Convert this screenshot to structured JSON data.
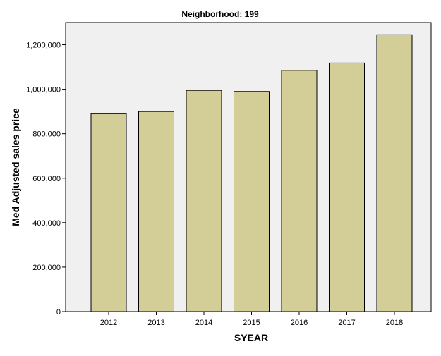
{
  "chart_data": {
    "type": "bar",
    "title": "Neighborhood: 199",
    "xlabel": "SYEAR",
    "ylabel": "Med Adjusted sales price",
    "categories": [
      "2012",
      "2013",
      "2014",
      "2015",
      "2016",
      "2017",
      "2018"
    ],
    "values": [
      890000,
      900000,
      995000,
      990000,
      1085000,
      1118000,
      1245000
    ],
    "ylim": [
      0,
      1300000
    ],
    "yticks": [
      0,
      200000,
      400000,
      600000,
      800000,
      1000000,
      1200000
    ],
    "ytick_labels": [
      "0",
      "200,000",
      "400,000",
      "600,000",
      "800,000",
      "1,000,000",
      "1,200,000"
    ],
    "grid": false,
    "legend": "none",
    "colors": {
      "bar_fill": "#d3ce97",
      "bar_stroke": "#000000",
      "plot_background": "#f0f0f0",
      "axis": "#000000"
    }
  }
}
